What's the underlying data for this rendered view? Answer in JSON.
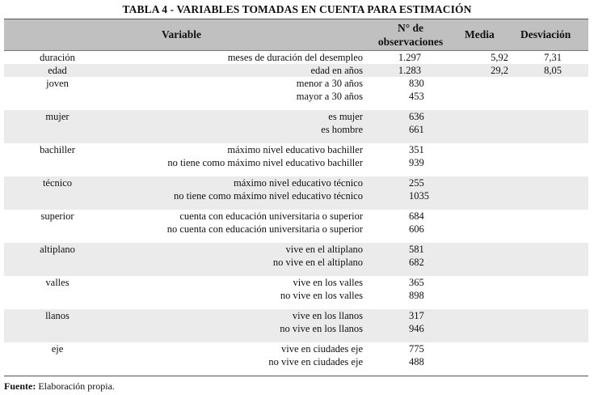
{
  "title": "TABLA 4 - VARIABLES TOMADAS EN CUENTA PARA ESTIMACIÓN",
  "headers": {
    "variable": "Variable",
    "obs_line1": "N° de",
    "obs_line2": "observaciones",
    "media": "Media",
    "desviacion": "Desviación"
  },
  "rows": {
    "duracion": {
      "name": "duración",
      "desc": "meses de duración del desempleo",
      "obs": "1.297",
      "media": "5,92",
      "desv": "7,31"
    },
    "edad": {
      "name": "edad",
      "desc": "edad en años",
      "obs": "1.283",
      "media": "29,2",
      "desv": "8,05"
    },
    "joven": {
      "name": "joven",
      "desc1": "menor a 30 años",
      "obs1": "830",
      "desc2": "mayor a 30 años",
      "obs2": "453"
    },
    "mujer": {
      "name": "mujer",
      "desc1": "es mujer",
      "obs1": "636",
      "desc2": "es hombre",
      "obs2": "661"
    },
    "bachiller": {
      "name": "bachiller",
      "desc1": "máximo nivel educativo bachiller",
      "obs1": "351",
      "desc2": "no tiene como máximo nivel educativo bachiller",
      "obs2": "939"
    },
    "tecnico": {
      "name": "técnico",
      "desc1": "máximo nivel educativo técnico",
      "obs1": "255",
      "desc2": "no tiene como máximo nivel educativo técnico",
      "obs2": "1035"
    },
    "superior": {
      "name": "superior",
      "desc1": "cuenta con educación universitaria o superior",
      "obs1": "684",
      "desc2": "no cuenta con educación universitaria o superior",
      "obs2": "606"
    },
    "altiplano": {
      "name": "altiplano",
      "desc1": "vive en el altiplano",
      "obs1": "581",
      "desc2": "no vive en el altiplano",
      "obs2": "682"
    },
    "valles": {
      "name": "valles",
      "desc1": "vive en los valles",
      "obs1": "365",
      "desc2": "no vive en los valles",
      "obs2": "898"
    },
    "llanos": {
      "name": "llanos",
      "desc1": "vive en los llanos",
      "obs1": "317",
      "desc2": "no vive en los llanos",
      "obs2": "946"
    },
    "eje": {
      "name": "eje",
      "desc1": "vive en ciudades eje",
      "obs1": "775",
      "desc2": "no vive en ciudades eje",
      "obs2": "488"
    }
  },
  "footer": {
    "label": "Fuente:",
    "text": "Elaboración propia."
  }
}
